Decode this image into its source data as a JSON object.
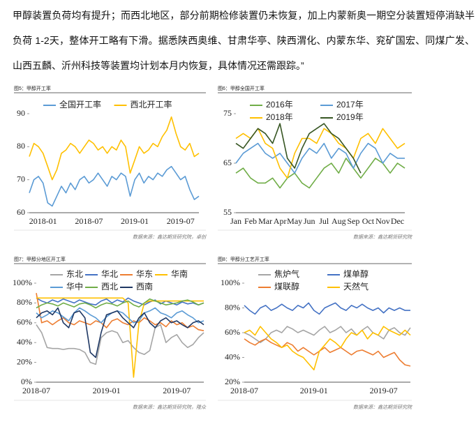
{
  "text": "甲醇装置负荷均有提升；而西北地区，部分前期检修装置仍未恢复，加上内蒙新奥一期空分装置短停消缺半负荷 1-2天，整体开工略有下滑。据悉陕西奥维、甘肃华亭、陕西渭化、内蒙东华、兖矿国宏、同煤广发、山西五麟、沂州科技等装置均计划本月内恢复，具体情况还需跟踪。”",
  "chart_data": [
    {
      "type": "line",
      "title": "图5：甲醇开工率",
      "source": "数据来源：鑫达期货研究院，卓创",
      "categories": [
        null,
        null,
        null,
        "2018-01",
        null,
        null,
        null,
        null,
        null,
        null,
        null,
        null,
        null,
        "2018-07",
        null,
        null,
        null,
        null,
        null,
        null,
        null,
        null,
        null,
        "2019-01",
        null,
        null,
        null,
        null,
        null,
        null,
        null,
        null,
        null,
        "2019-07",
        null,
        null,
        null,
        null
      ],
      "series": [
        {
          "name": "全国开工率",
          "color": "#5b9bd5",
          "values": [
            66,
            70,
            71,
            69,
            63,
            62,
            65,
            68,
            66,
            69,
            67,
            70,
            71,
            69,
            70,
            72,
            70,
            68,
            71,
            70,
            72,
            71,
            65,
            70,
            72,
            69,
            71,
            70,
            72,
            71,
            73,
            74,
            72,
            70,
            71,
            67,
            64,
            65
          ]
        },
        {
          "name": "西北开工率",
          "color": "#ffc000",
          "values": [
            77,
            81,
            80,
            78,
            74,
            70,
            73,
            78,
            79,
            81,
            80,
            78,
            80,
            82,
            81,
            79,
            80,
            78,
            80,
            79,
            82,
            80,
            72,
            76,
            80,
            78,
            79,
            81,
            80,
            83,
            85,
            89,
            84,
            80,
            79,
            81,
            77,
            78
          ]
        }
      ],
      "ylim": [
        60,
        90
      ],
      "yticks": [
        60,
        70,
        80,
        90
      ]
    },
    {
      "type": "line",
      "title": "图6：甲醇全国开工率",
      "source": "数据来源：鑫达期货研究院",
      "categories": [
        "Jan",
        null,
        "Feb",
        null,
        "Mar",
        null,
        "Apr",
        null,
        "May",
        null,
        "Jun",
        null,
        "Jul",
        null,
        "Aug",
        null,
        "Sep",
        null,
        "Oct",
        null,
        "Nov",
        null,
        "Dec",
        null
      ],
      "series": [
        {
          "name": "2016年",
          "color": "#70ad47",
          "values": [
            63,
            64,
            62,
            61,
            61,
            62,
            60,
            62,
            63,
            61,
            60,
            62,
            64,
            65,
            63,
            66,
            64,
            62,
            64,
            66,
            65,
            63,
            65,
            64
          ]
        },
        {
          "name": "2017年",
          "color": "#5b9bd5",
          "values": [
            65,
            67,
            68,
            69,
            67,
            66,
            67,
            65,
            63,
            66,
            68,
            67,
            69,
            66,
            68,
            67,
            64,
            67,
            69,
            68,
            65,
            67,
            66,
            66
          ]
        },
        {
          "name": "2018年",
          "color": "#ffc000",
          "values": [
            70,
            71,
            70,
            72,
            69,
            68,
            64,
            62,
            67,
            70,
            70,
            69,
            72,
            71,
            69,
            68,
            66,
            70,
            71,
            69,
            72,
            70,
            68,
            69
          ]
        },
        {
          "name": "2019年",
          "color": "#375623",
          "values": [
            69,
            68,
            70,
            72,
            71,
            69,
            73,
            66,
            64,
            68,
            71,
            72,
            73,
            71,
            70,
            68,
            66,
            63,
            null,
            null,
            null,
            null,
            null,
            null
          ]
        }
      ],
      "ylim": [
        55,
        75
      ],
      "yticks": [
        55,
        65,
        75
      ]
    },
    {
      "type": "line",
      "title": "图7：甲醇分地区开工率",
      "source": "数据来源：鑫达期货研究院，隆众",
      "categories": [
        "2018-07",
        null,
        null,
        null,
        null,
        null,
        null,
        null,
        null,
        null,
        null,
        null,
        null,
        "2019-01",
        null,
        null,
        null,
        null,
        null,
        null,
        null,
        null,
        null,
        null,
        null,
        null,
        "2019-07",
        null,
        null,
        null,
        null,
        null
      ],
      "series": [
        {
          "name": "东北",
          "color": "#a5a5a5",
          "values": [
            58,
            50,
            35,
            34,
            34,
            33,
            34,
            34,
            33,
            30,
            20,
            18,
            45,
            50,
            52,
            50,
            40,
            42,
            35,
            30,
            28,
            32,
            55,
            58,
            40,
            45,
            48,
            40,
            35,
            38,
            45,
            50
          ]
        },
        {
          "name": "华北",
          "color": "#4472c4",
          "values": [
            85,
            82,
            80,
            83,
            81,
            84,
            82,
            80,
            83,
            81,
            79,
            78,
            82,
            84,
            80,
            83,
            81,
            85,
            82,
            80,
            78,
            81,
            83,
            79,
            82,
            80,
            78,
            81,
            79,
            80,
            78,
            80
          ]
        },
        {
          "name": "华东",
          "color": "#ed7d31",
          "values": [
            90,
            60,
            62,
            58,
            62,
            65,
            60,
            58,
            62,
            60,
            58,
            62,
            60,
            55,
            62,
            64,
            60,
            58,
            62,
            60,
            65,
            62,
            58,
            60,
            56,
            62,
            58,
            60,
            55,
            57,
            53,
            52
          ]
        },
        {
          "name": "华南",
          "color": "#ffc000",
          "values": [
            85,
            85,
            85,
            85,
            85,
            85,
            85,
            85,
            85,
            85,
            85,
            85,
            85,
            85,
            85,
            85,
            85,
            80,
            5,
            60,
            80,
            82,
            82,
            82,
            82,
            82,
            82,
            82,
            82,
            82,
            82,
            82
          ]
        },
        {
          "name": "华中",
          "color": "#5b9bd5",
          "values": [
            70,
            65,
            68,
            72,
            70,
            66,
            62,
            70,
            75,
            72,
            68,
            65,
            60,
            66,
            70,
            72,
            70,
            65,
            60,
            62,
            70,
            72,
            75,
            70,
            68,
            65,
            70,
            72,
            68,
            65,
            60,
            62
          ]
        },
        {
          "name": "西北",
          "color": "#70ad47",
          "values": [
            75,
            78,
            80,
            79,
            77,
            80,
            78,
            76,
            79,
            80,
            78,
            75,
            78,
            80,
            79,
            77,
            80,
            82,
            78,
            76,
            80,
            84,
            82,
            80,
            78,
            79,
            80,
            82,
            83,
            81,
            78,
            80
          ]
        },
        {
          "name": "西南",
          "color": "#1f3864",
          "values": [
            65,
            70,
            72,
            68,
            75,
            60,
            55,
            70,
            72,
            65,
            30,
            25,
            50,
            68,
            70,
            72,
            65,
            60,
            55,
            65,
            70,
            60,
            55,
            62,
            65,
            60,
            62,
            58,
            55,
            60,
            62,
            58
          ]
        }
      ],
      "ylim": [
        0,
        100
      ],
      "yticks": [
        {
          "value": 0,
          "label": "0%"
        },
        {
          "value": 20,
          "label": "20%"
        },
        {
          "value": 40,
          "label": "40%"
        },
        {
          "value": 60,
          "label": "60%"
        },
        {
          "value": 80,
          "label": "80%"
        },
        {
          "value": 100,
          "label": "100%"
        }
      ]
    },
    {
      "type": "line",
      "title": "图8：甲醇分工艺开工率",
      "source": "数据来源：鑫达期货研究院",
      "categories": [
        "2018-07",
        null,
        null,
        null,
        null,
        null,
        null,
        null,
        null,
        null,
        null,
        null,
        null,
        "2019-01",
        null,
        null,
        null,
        null,
        null,
        null,
        null,
        null,
        null,
        null,
        null,
        null,
        "2019-07",
        null,
        null,
        null,
        null,
        null
      ],
      "series": [
        {
          "name": "焦炉气",
          "color": "#a5a5a5",
          "values": [
            60,
            58,
            55,
            52,
            55,
            60,
            62,
            60,
            65,
            63,
            60,
            62,
            60,
            58,
            62,
            65,
            60,
            62,
            65,
            60,
            63,
            58,
            62,
            65,
            60,
            58,
            55,
            62,
            64,
            60,
            58,
            64
          ]
        },
        {
          "name": "煤单醇",
          "color": "#4472c4",
          "values": [
            82,
            78,
            75,
            80,
            82,
            78,
            80,
            83,
            80,
            78,
            82,
            80,
            84,
            78,
            75,
            80,
            82,
            84,
            80,
            78,
            82,
            80,
            83,
            80,
            78,
            80,
            76,
            80,
            78,
            80,
            78,
            78
          ]
        },
        {
          "name": "煤联醇",
          "color": "#ed7d31",
          "values": [
            55,
            52,
            50,
            53,
            55,
            52,
            50,
            48,
            52,
            50,
            45,
            48,
            45,
            42,
            45,
            48,
            44,
            46,
            48,
            45,
            42,
            45,
            46,
            44,
            42,
            45,
            40,
            42,
            44,
            38,
            34,
            33
          ]
        },
        {
          "name": "天然气",
          "color": "#ffc000",
          "values": [
            60,
            62,
            58,
            65,
            60,
            55,
            52,
            48,
            50,
            45,
            42,
            40,
            35,
            30,
            45,
            50,
            55,
            52,
            48,
            55,
            60,
            58,
            62,
            55,
            60,
            58,
            65,
            62,
            60,
            58,
            62,
            58
          ]
        }
      ],
      "ylim": [
        20,
        100
      ],
      "yticks": [
        {
          "value": 20,
          "label": "20%"
        },
        {
          "value": 40,
          "label": "40%"
        },
        {
          "value": 60,
          "label": "60%"
        },
        {
          "value": 80,
          "label": "80%"
        },
        {
          "value": 100,
          "label": "100%"
        }
      ]
    }
  ]
}
